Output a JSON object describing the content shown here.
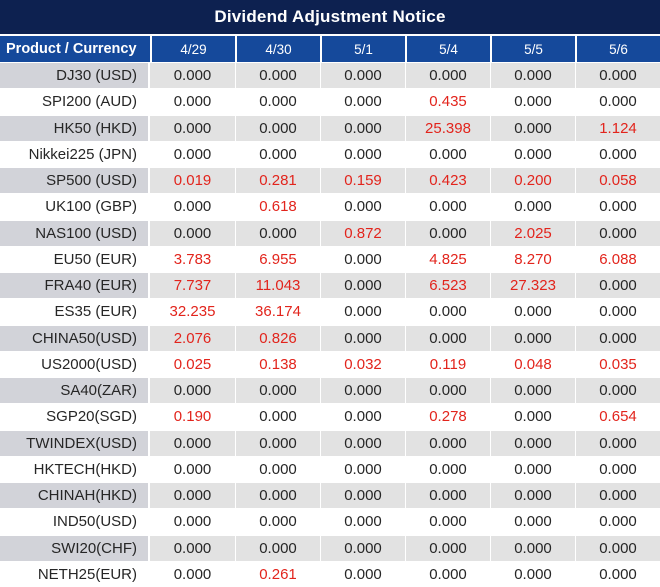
{
  "title": "Dividend Adjustment Notice",
  "colors": {
    "title_bg": "#0d2150",
    "header_bg": "#15499b",
    "row_gray_label": "#d2d3d9",
    "row_gray_value": "#e2e2e2",
    "row_white": "#ffffff",
    "text_dark": "#262626",
    "text_red": "#e2241c",
    "header_text": "#ffffff"
  },
  "chart_data": {
    "type": "table",
    "title": "Dividend Adjustment Notice",
    "columns": [
      "Product / Currency",
      "4/29",
      "4/30",
      "5/1",
      "5/4",
      "5/5",
      "5/6"
    ],
    "rows": [
      {
        "product": "DJ30 (USD)",
        "values": [
          "0.000",
          "0.000",
          "0.000",
          "0.000",
          "0.000",
          "0.000"
        ],
        "red": [
          false,
          false,
          false,
          false,
          false,
          false
        ]
      },
      {
        "product": "SPI200 (AUD)",
        "values": [
          "0.000",
          "0.000",
          "0.000",
          "0.435",
          "0.000",
          "0.000"
        ],
        "red": [
          false,
          false,
          false,
          true,
          false,
          false
        ]
      },
      {
        "product": "HK50 (HKD)",
        "values": [
          "0.000",
          "0.000",
          "0.000",
          "25.398",
          "0.000",
          "1.124"
        ],
        "red": [
          false,
          false,
          false,
          true,
          false,
          true
        ]
      },
      {
        "product": "Nikkei225 (JPN)",
        "values": [
          "0.000",
          "0.000",
          "0.000",
          "0.000",
          "0.000",
          "0.000"
        ],
        "red": [
          false,
          false,
          false,
          false,
          false,
          false
        ]
      },
      {
        "product": "SP500 (USD)",
        "values": [
          "0.019",
          "0.281",
          "0.159",
          "0.423",
          "0.200",
          "0.058"
        ],
        "red": [
          true,
          true,
          true,
          true,
          true,
          true
        ]
      },
      {
        "product": "UK100 (GBP)",
        "values": [
          "0.000",
          "0.618",
          "0.000",
          "0.000",
          "0.000",
          "0.000"
        ],
        "red": [
          false,
          true,
          false,
          false,
          false,
          false
        ]
      },
      {
        "product": "NAS100 (USD)",
        "values": [
          "0.000",
          "0.000",
          "0.872",
          "0.000",
          "2.025",
          "0.000"
        ],
        "red": [
          false,
          false,
          true,
          false,
          true,
          false
        ]
      },
      {
        "product": "EU50 (EUR)",
        "values": [
          "3.783",
          "6.955",
          "0.000",
          "4.825",
          "8.270",
          "6.088"
        ],
        "red": [
          true,
          true,
          false,
          true,
          true,
          true
        ]
      },
      {
        "product": "FRA40 (EUR)",
        "values": [
          "7.737",
          "11.043",
          "0.000",
          "6.523",
          "27.323",
          "0.000"
        ],
        "red": [
          true,
          true,
          false,
          true,
          true,
          false
        ]
      },
      {
        "product": "ES35 (EUR)",
        "values": [
          "32.235",
          "36.174",
          "0.000",
          "0.000",
          "0.000",
          "0.000"
        ],
        "red": [
          true,
          true,
          false,
          false,
          false,
          false
        ]
      },
      {
        "product": "CHINA50(USD)",
        "values": [
          "2.076",
          "0.826",
          "0.000",
          "0.000",
          "0.000",
          "0.000"
        ],
        "red": [
          true,
          true,
          false,
          false,
          false,
          false
        ]
      },
      {
        "product": "US2000(USD)",
        "values": [
          "0.025",
          "0.138",
          "0.032",
          "0.119",
          "0.048",
          "0.035"
        ],
        "red": [
          true,
          true,
          true,
          true,
          true,
          true
        ]
      },
      {
        "product": "SA40(ZAR)",
        "values": [
          "0.000",
          "0.000",
          "0.000",
          "0.000",
          "0.000",
          "0.000"
        ],
        "red": [
          false,
          false,
          false,
          false,
          false,
          false
        ]
      },
      {
        "product": "SGP20(SGD)",
        "values": [
          "0.190",
          "0.000",
          "0.000",
          "0.278",
          "0.000",
          "0.654"
        ],
        "red": [
          true,
          false,
          false,
          true,
          false,
          true
        ]
      },
      {
        "product": "TWINDEX(USD)",
        "values": [
          "0.000",
          "0.000",
          "0.000",
          "0.000",
          "0.000",
          "0.000"
        ],
        "red": [
          false,
          false,
          false,
          false,
          false,
          false
        ]
      },
      {
        "product": "HKTECH(HKD)",
        "values": [
          "0.000",
          "0.000",
          "0.000",
          "0.000",
          "0.000",
          "0.000"
        ],
        "red": [
          false,
          false,
          false,
          false,
          false,
          false
        ]
      },
      {
        "product": "CHINAH(HKD)",
        "values": [
          "0.000",
          "0.000",
          "0.000",
          "0.000",
          "0.000",
          "0.000"
        ],
        "red": [
          false,
          false,
          false,
          false,
          false,
          false
        ]
      },
      {
        "product": "IND50(USD)",
        "values": [
          "0.000",
          "0.000",
          "0.000",
          "0.000",
          "0.000",
          "0.000"
        ],
        "red": [
          false,
          false,
          false,
          false,
          false,
          false
        ]
      },
      {
        "product": "SWI20(CHF)",
        "values": [
          "0.000",
          "0.000",
          "0.000",
          "0.000",
          "0.000",
          "0.000"
        ],
        "red": [
          false,
          false,
          false,
          false,
          false,
          false
        ]
      },
      {
        "product": "NETH25(EUR)",
        "values": [
          "0.000",
          "0.261",
          "0.000",
          "0.000",
          "0.000",
          "0.000"
        ],
        "red": [
          false,
          true,
          false,
          false,
          false,
          false
        ]
      }
    ]
  }
}
